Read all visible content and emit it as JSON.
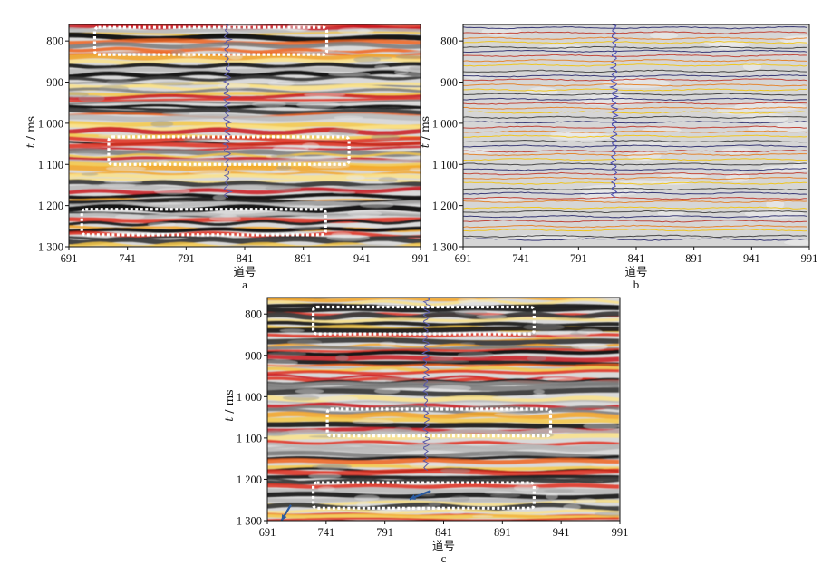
{
  "figure": {
    "panels": [
      {
        "label": "a",
        "kind": "seismic-section",
        "xlabel": "道号",
        "ylabel_var": "t",
        "ylabel_unit": "/ ms",
        "xticks": [
          691,
          741,
          791,
          841,
          891,
          941,
          991
        ],
        "yticks": [
          800,
          900,
          1000,
          1100,
          1200,
          1300
        ],
        "ytick_labels": [
          "800",
          "900",
          "1 000",
          "1 100",
          "1 200",
          "1 300"
        ],
        "xlim": [
          691,
          991
        ],
        "ylim": [
          1300,
          760
        ],
        "well_trace": {
          "trace": 826,
          "t_range": [
            760,
            1180
          ],
          "color": "#5a5aa8"
        },
        "highlight_boxes": [
          {
            "x": [
              713,
              911
            ],
            "t": [
              767,
              833
            ]
          },
          {
            "x": [
              725,
              930
            ],
            "t": [
              1033,
              1100
            ]
          },
          {
            "x": [
              702,
              910
            ],
            "t": [
              1209,
              1271
            ]
          }
        ],
        "arrows": []
      },
      {
        "label": "b",
        "kind": "horizon-lines",
        "xlabel": "道号",
        "ylabel_var": "t",
        "ylabel_unit": "/ ms",
        "xticks": [
          691,
          741,
          791,
          841,
          891,
          941,
          991
        ],
        "yticks": [
          800,
          900,
          1000,
          1100,
          1200,
          1300
        ],
        "ytick_labels": [
          "800",
          "900",
          "1 000",
          "1 100",
          "1 200",
          "1 300"
        ],
        "xlim": [
          691,
          991
        ],
        "ylim": [
          1300,
          760
        ],
        "well_trace": {
          "trace": 822,
          "t_range": [
            760,
            1180
          ],
          "color": "#4a4ab0"
        },
        "highlight_boxes": [],
        "arrows": []
      },
      {
        "label": "c",
        "kind": "seismic-section",
        "xlabel": "道号",
        "ylabel_var": "t",
        "ylabel_unit": "/ ms",
        "xticks": [
          691,
          741,
          791,
          841,
          891,
          941,
          991
        ],
        "yticks": [
          800,
          900,
          1000,
          1100,
          1200,
          1300
        ],
        "ytick_labels": [
          "800",
          "900",
          "1 000",
          "1 100",
          "1 200",
          "1 300"
        ],
        "xlim": [
          691,
          991
        ],
        "ylim": [
          1300,
          760
        ],
        "well_trace": {
          "trace": 826,
          "t_range": [
            760,
            1180
          ],
          "color": "#5a5aa8"
        },
        "highlight_boxes": [
          {
            "x": [
              730,
              918
            ],
            "t": [
              783,
              848
            ]
          },
          {
            "x": [
              742,
              932
            ],
            "t": [
              1030,
              1095
            ]
          },
          {
            "x": [
              730,
              918
            ],
            "t": [
              1208,
              1270
            ]
          }
        ],
        "arrows": [
          {
            "from": [
              711,
              1262
            ],
            "to": [
              703,
              1300
            ],
            "color": "#2a5aa0"
          },
          {
            "from": [
              830,
              1228
            ],
            "to": [
              812,
              1248
            ],
            "color": "#2a5aa0"
          }
        ]
      }
    ]
  },
  "chart_data": [
    {
      "type": "heatmap",
      "panel": "a",
      "xlabel": "道号",
      "ylabel": "t / ms",
      "xlim": [
        691,
        991
      ],
      "ylim": [
        1300,
        760
      ],
      "x_ticks": [
        691,
        741,
        791,
        841,
        891,
        941,
        991
      ],
      "y_ticks": [
        800,
        900,
        1000,
        1100,
        1200,
        1300
      ]
    },
    {
      "type": "line",
      "panel": "b",
      "xlabel": "道号",
      "ylabel": "t / ms",
      "xlim": [
        691,
        991
      ],
      "ylim": [
        1300,
        760
      ],
      "x_ticks": [
        691,
        741,
        791,
        841,
        891,
        941,
        991
      ],
      "y_ticks": [
        800,
        900,
        1000,
        1100,
        1200,
        1300
      ]
    },
    {
      "type": "heatmap",
      "panel": "c",
      "xlabel": "道号",
      "ylabel": "t / ms",
      "xlim": [
        691,
        991
      ],
      "ylim": [
        1300,
        760
      ],
      "x_ticks": [
        691,
        741,
        791,
        841,
        891,
        941,
        991
      ],
      "y_ticks": [
        800,
        900,
        1000,
        1100,
        1200,
        1300
      ]
    }
  ]
}
